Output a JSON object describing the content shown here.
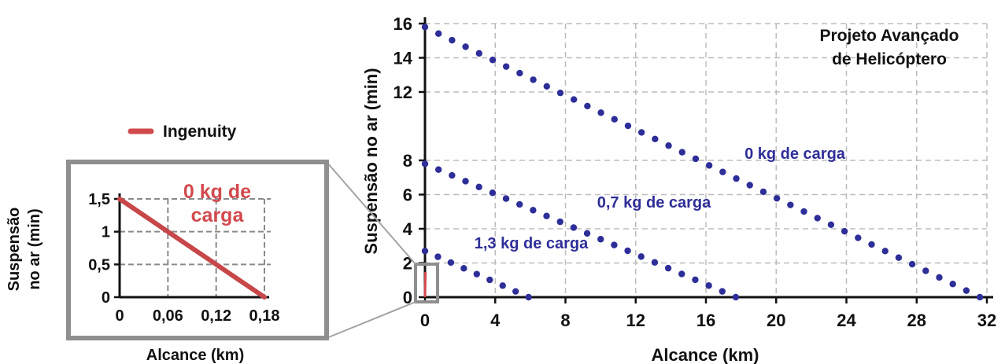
{
  "chart_data": [
    {
      "type": "scatter",
      "title": "Projeto Avançado de Helicóptero",
      "title_lines": [
        "Projeto Avançado",
        "de Helicóptero"
      ],
      "xlabel": "Alcance (km)",
      "ylabel": "Suspensão no ar (min)",
      "xlim": [
        0,
        32
      ],
      "ylim": [
        0,
        16
      ],
      "x_ticks": [
        0,
        4,
        8,
        12,
        16,
        20,
        24,
        28,
        32
      ],
      "y_ticks": [
        0,
        2,
        4,
        6,
        8,
        12,
        14,
        16
      ],
      "x_tick_labels": [
        "0",
        "4",
        "8",
        "12",
        "16",
        "20",
        "24",
        "28",
        "32"
      ],
      "y_tick_labels": [
        "0",
        "2",
        "4",
        "6",
        "8",
        "12",
        "14",
        "16"
      ],
      "grid": true,
      "dot_color": "#2e2e99",
      "series": [
        {
          "name": "0 kg de carga",
          "x0": 0,
          "y0": 15.8,
          "x1": 31.6,
          "y1": 0,
          "points": 42
        },
        {
          "name": "0,7 kg de carga",
          "x0": 0,
          "y0": 7.8,
          "x1": 17.7,
          "y1": 0,
          "points": 24
        },
        {
          "name": "1,3 kg de carga",
          "x0": 0,
          "y0": 2.7,
          "x1": 5.9,
          "y1": 0,
          "points": 9
        }
      ]
    },
    {
      "type": "line",
      "xlabel": "Alcance (km)",
      "ylabel_lines": [
        "Suspensão",
        "no ar (min)"
      ],
      "xlim": [
        0,
        0.18
      ],
      "ylim": [
        0,
        1.5
      ],
      "x_tick_labels": [
        "0",
        "0,06",
        "0,12",
        "0,18"
      ],
      "y_tick_labels": [
        "0",
        "0,5",
        "1",
        "1,5"
      ],
      "x_ticks": [
        0,
        0.06,
        0.12,
        0.18
      ],
      "y_ticks": [
        0,
        0.5,
        1,
        1.5
      ],
      "grid": true,
      "line_color": "#c8474a",
      "series": [
        {
          "name": "Ingenuity",
          "x": [
            0,
            0.18
          ],
          "y": [
            1.5,
            0
          ]
        }
      ],
      "annotation_lines": [
        "0 kg de",
        "carga"
      ]
    }
  ],
  "legend": {
    "label": "Ingenuity",
    "color": "#d2494d"
  }
}
